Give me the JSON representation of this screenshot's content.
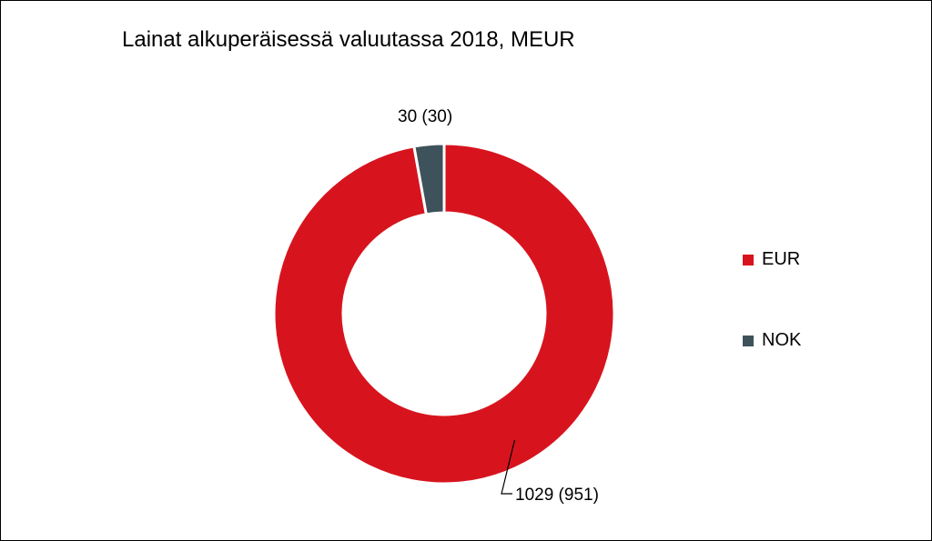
{
  "chart_data": {
    "type": "pie",
    "variant": "doughnut",
    "title": "Lainat alkuperäisessä valuutassa 2018, MEUR",
    "series": [
      {
        "name": "EUR",
        "value": 1029,
        "label": "1029 (951)",
        "color": "#d7141e"
      },
      {
        "name": "NOK",
        "value": 30,
        "label": "30 (30)",
        "color": "#3e525b"
      }
    ],
    "legend_position": "right"
  }
}
